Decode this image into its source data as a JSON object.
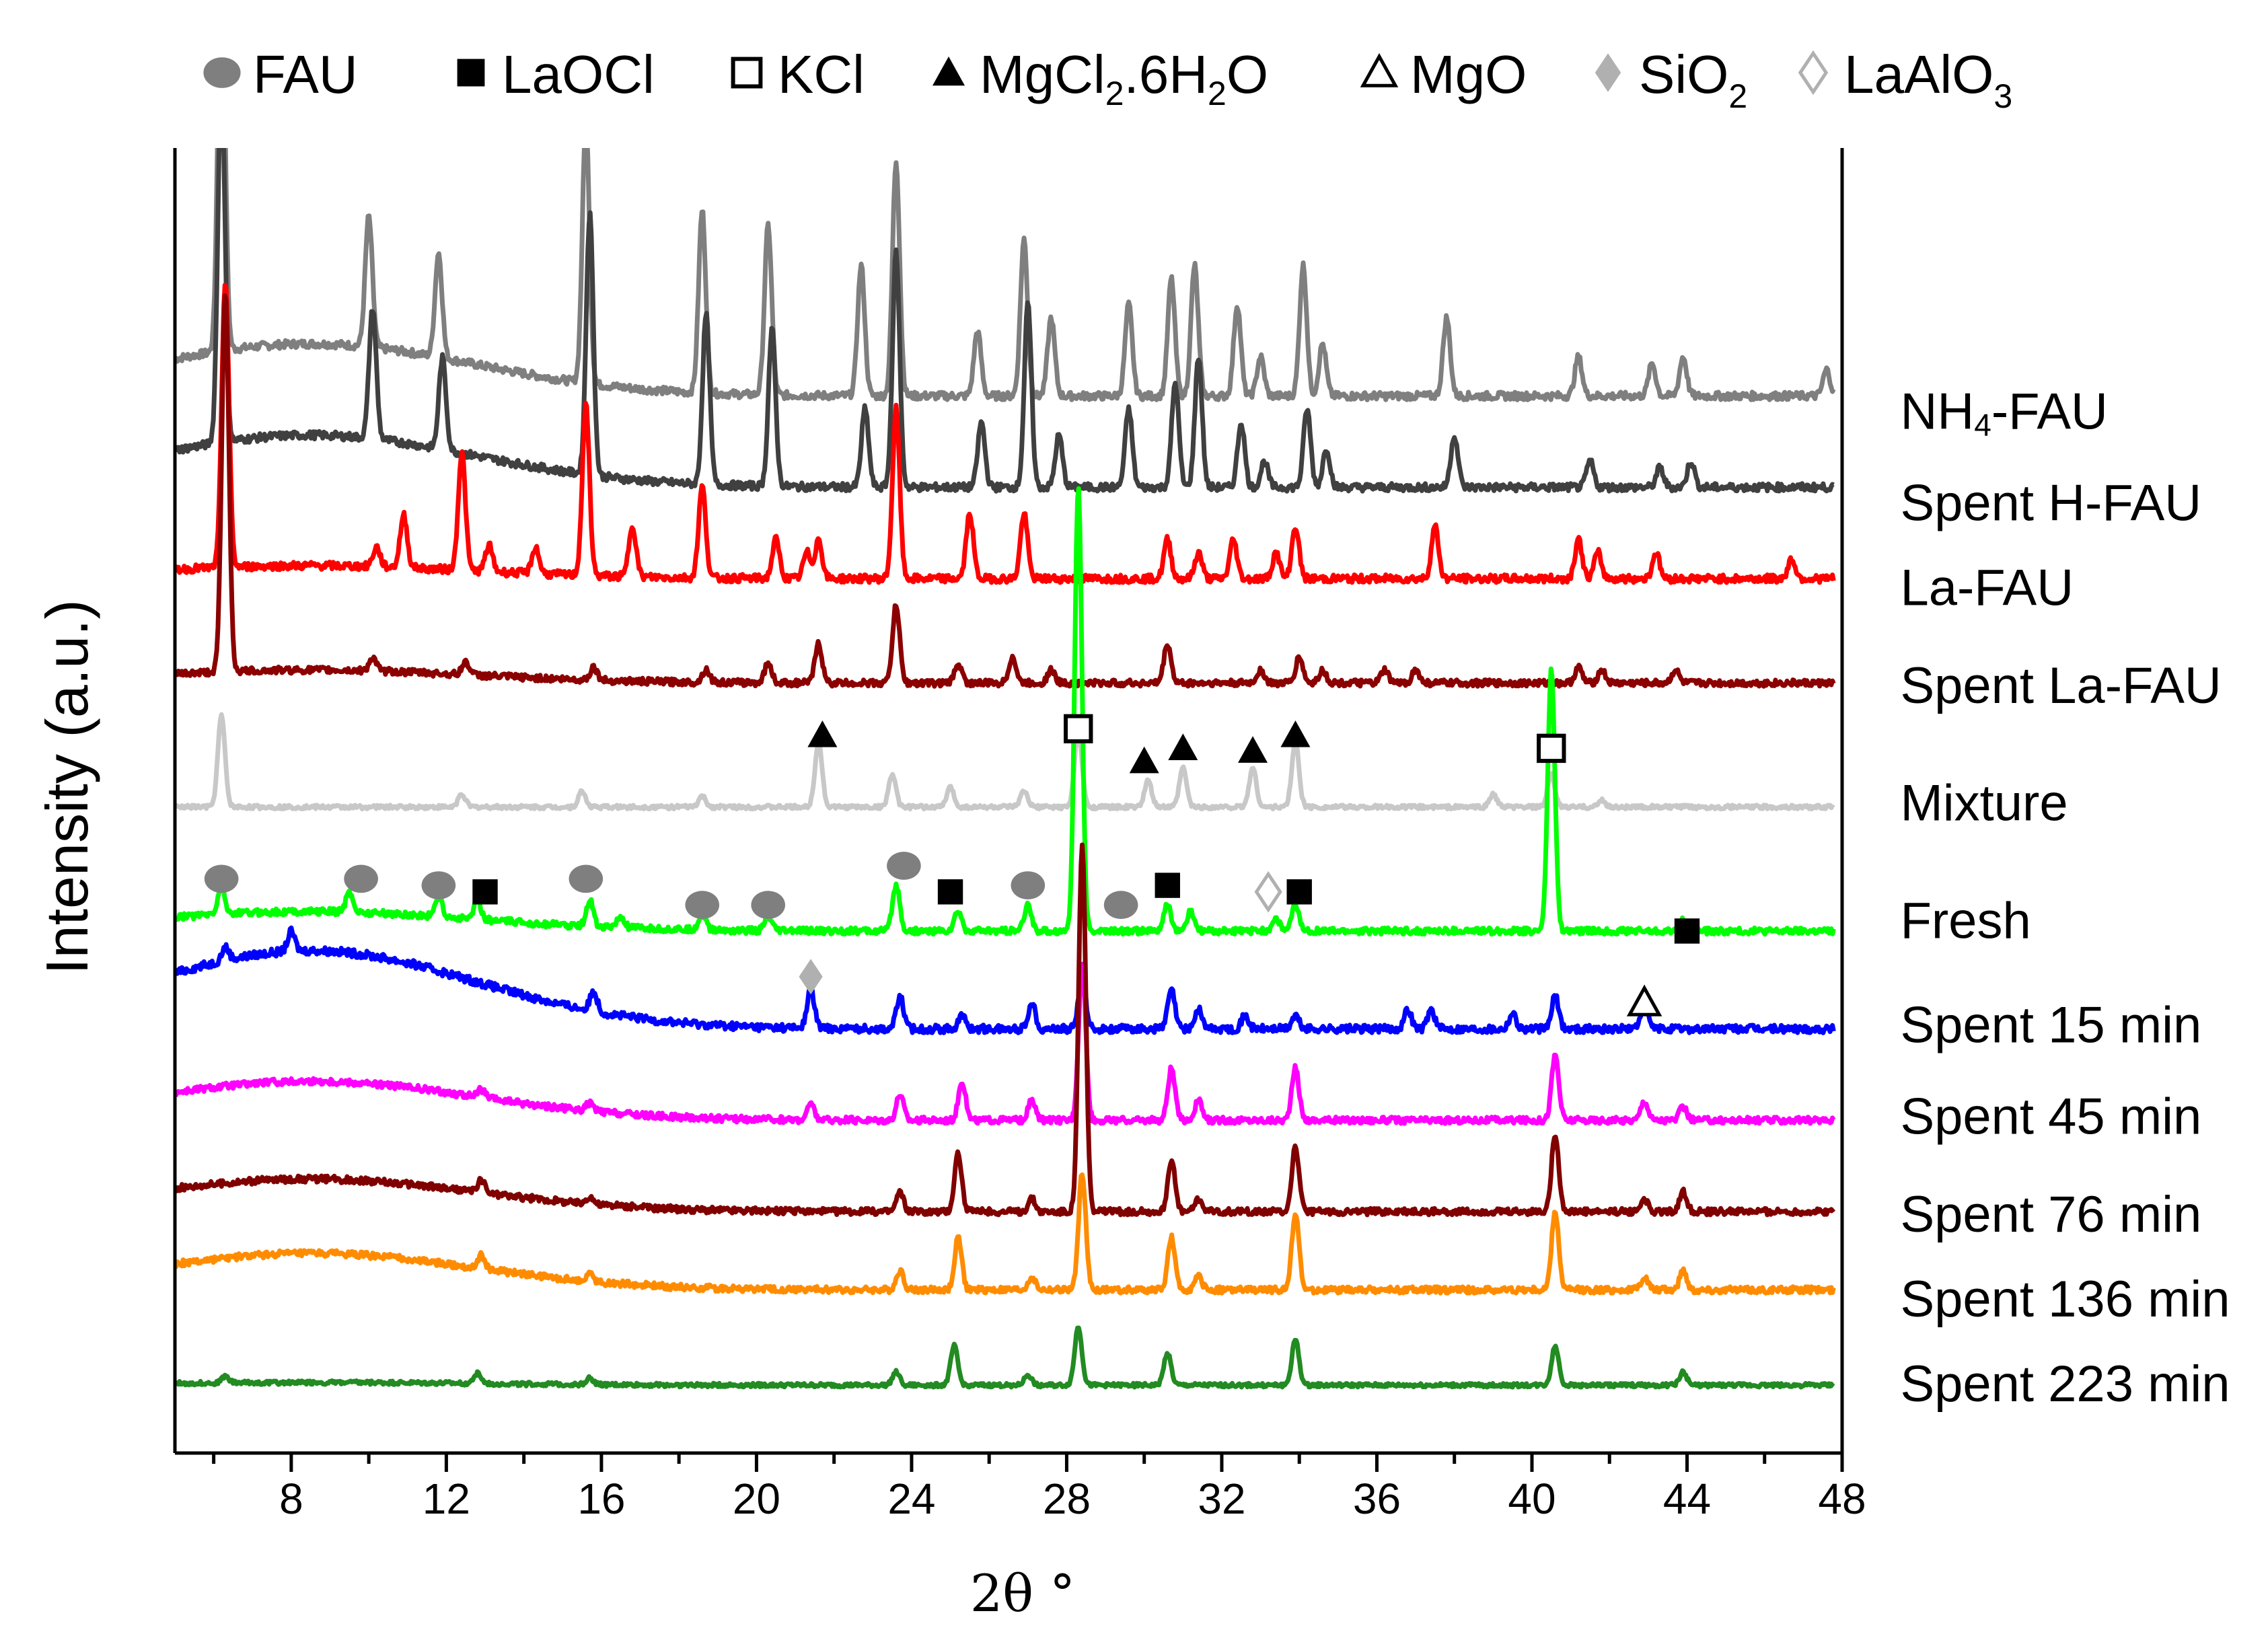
{
  "chart_data": {
    "type": "line",
    "title": "",
    "xlabel": "2θ °",
    "ylabel": "Intensity (a.u.)",
    "xlim": [
      5,
      48
    ],
    "xticks": [
      8,
      12,
      16,
      20,
      24,
      28,
      32,
      36,
      40,
      44,
      48
    ],
    "ylim": [
      0,
      100
    ],
    "grid": false,
    "legend": [
      {
        "name": "FAU",
        "marker": "circle-gray"
      },
      {
        "name": "LaOCl",
        "marker": "square-filled"
      },
      {
        "name": "KCl",
        "marker": "square-open"
      },
      {
        "name": "MgCl2.6H2O",
        "marker": "triangle-filled"
      },
      {
        "name": "MgO",
        "marker": "triangle-open"
      },
      {
        "name": "SiO2",
        "marker": "diamond-gray"
      },
      {
        "name": "LaAlO3",
        "marker": "diamond-open"
      }
    ],
    "series": [
      {
        "name": "NH4-FAU",
        "color": "#7f7f7f",
        "baseline": 81,
        "bump": 4,
        "noise": 0.6,
        "peaks": [
          [
            6.2,
            30
          ],
          [
            10.0,
            10
          ],
          [
            11.8,
            8
          ],
          [
            15.6,
            20
          ],
          [
            18.6,
            14
          ],
          [
            20.3,
            13
          ],
          [
            22.7,
            10
          ],
          [
            23.6,
            18
          ],
          [
            25.7,
            5
          ],
          [
            26.9,
            12
          ],
          [
            27.6,
            6
          ],
          [
            29.6,
            7
          ],
          [
            30.7,
            9
          ],
          [
            31.3,
            10
          ],
          [
            32.4,
            7
          ],
          [
            33.0,
            3
          ],
          [
            34.1,
            10
          ],
          [
            34.6,
            4
          ],
          [
            37.8,
            6
          ],
          [
            41.2,
            3
          ],
          [
            43.1,
            2.5
          ],
          [
            43.9,
            3
          ],
          [
            47.6,
            2
          ]
        ]
      },
      {
        "name": "Spent H-FAU",
        "color": "#404040",
        "baseline": 74,
        "bump": 4,
        "noise": 0.6,
        "peaks": [
          [
            6.2,
            28
          ],
          [
            10.1,
            10
          ],
          [
            11.9,
            7
          ],
          [
            15.7,
            20
          ],
          [
            18.7,
            13
          ],
          [
            20.4,
            12
          ],
          [
            22.8,
            6
          ],
          [
            23.6,
            18
          ],
          [
            25.8,
            5
          ],
          [
            27.0,
            14
          ],
          [
            27.8,
            4
          ],
          [
            29.6,
            6
          ],
          [
            30.8,
            8
          ],
          [
            31.4,
            10
          ],
          [
            32.5,
            5
          ],
          [
            33.1,
            2
          ],
          [
            34.2,
            6
          ],
          [
            34.7,
            3
          ],
          [
            38.0,
            4
          ],
          [
            41.5,
            2
          ],
          [
            43.3,
            1.5
          ],
          [
            44.1,
            2
          ]
        ]
      },
      {
        "name": "La-FAU",
        "color": "#ff0000",
        "baseline": 67,
        "bump": 1,
        "noise": 0.6,
        "peaks": [
          [
            6.3,
            22
          ],
          [
            10.2,
            1.5
          ],
          [
            10.9,
            4
          ],
          [
            12.4,
            9
          ],
          [
            13.1,
            2
          ],
          [
            14.3,
            2
          ],
          [
            15.6,
            13
          ],
          [
            16.8,
            4
          ],
          [
            18.6,
            7
          ],
          [
            20.5,
            3
          ],
          [
            21.3,
            2
          ],
          [
            21.6,
            3
          ],
          [
            23.6,
            13
          ],
          [
            25.5,
            5
          ],
          [
            26.9,
            5
          ],
          [
            30.6,
            3
          ],
          [
            31.4,
            2
          ],
          [
            32.3,
            3
          ],
          [
            33.4,
            2
          ],
          [
            33.9,
            4
          ],
          [
            37.5,
            4
          ],
          [
            41.2,
            3
          ],
          [
            41.7,
            2
          ],
          [
            43.2,
            2
          ],
          [
            46.7,
            1.5
          ]
        ]
      },
      {
        "name": "Spent La-FAU",
        "color": "#8b0000",
        "baseline": 59,
        "bump": 1,
        "noise": 0.5,
        "peaks": [
          [
            6.3,
            29
          ],
          [
            10.1,
            1
          ],
          [
            12.5,
            1
          ],
          [
            15.8,
            1
          ],
          [
            18.7,
            1
          ],
          [
            20.3,
            1.5
          ],
          [
            21.6,
            3
          ],
          [
            23.6,
            6
          ],
          [
            25.2,
            1.5
          ],
          [
            26.6,
            2
          ],
          [
            27.6,
            1
          ],
          [
            30.6,
            3
          ],
          [
            33.0,
            1
          ],
          [
            34.0,
            2
          ],
          [
            34.6,
            1
          ],
          [
            36.2,
            1
          ],
          [
            37.0,
            1
          ],
          [
            41.2,
            1.2
          ],
          [
            41.8,
            1
          ],
          [
            43.7,
            1
          ]
        ]
      },
      {
        "name": "Mixture",
        "color": "#c8c8c8",
        "baseline": 49.5,
        "bump": 0,
        "noise": 0.3,
        "peaks": [
          [
            6.2,
            7
          ],
          [
            12.4,
            1
          ],
          [
            15.5,
            1.2
          ],
          [
            18.6,
            0.8
          ],
          [
            21.6,
            5
          ],
          [
            23.5,
            2.5
          ],
          [
            25.0,
            1.5
          ],
          [
            26.9,
            1.2
          ],
          [
            28.3,
            6
          ],
          [
            30.1,
            2
          ],
          [
            31.0,
            3
          ],
          [
            32.8,
            3
          ],
          [
            33.9,
            5
          ],
          [
            39.0,
            1
          ],
          [
            40.5,
            2.5
          ],
          [
            41.8,
            0.5
          ]
        ]
      },
      {
        "name": "Fresh",
        "color": "#00ff00",
        "baseline": 40,
        "bump": 1.5,
        "noise": 0.5,
        "peaks": [
          [
            6.2,
            2
          ],
          [
            9.5,
            1.5
          ],
          [
            11.8,
            1.5
          ],
          [
            12.8,
            1.5
          ],
          [
            15.7,
            2
          ],
          [
            16.5,
            0.8
          ],
          [
            18.6,
            1.2
          ],
          [
            20.3,
            1
          ],
          [
            23.6,
            3.5
          ],
          [
            25.2,
            1.5
          ],
          [
            27.0,
            2
          ],
          [
            28.3,
            34
          ],
          [
            30.6,
            2
          ],
          [
            31.2,
            1.5
          ],
          [
            33.4,
            1
          ],
          [
            33.9,
            2
          ],
          [
            40.5,
            20
          ],
          [
            43.9,
            0.8
          ]
        ]
      },
      {
        "name": "Spent 15 min",
        "color": "#0000ff",
        "baseline": 32.5,
        "bump": 6,
        "noise": 0.6,
        "peaks": [
          [
            6.3,
            1
          ],
          [
            8.0,
            1.5
          ],
          [
            15.8,
            1.5
          ],
          [
            21.4,
            3
          ],
          [
            23.7,
            2.5
          ],
          [
            25.3,
            1
          ],
          [
            27.1,
            2
          ],
          [
            28.4,
            4
          ],
          [
            30.7,
            3
          ],
          [
            31.4,
            1.5
          ],
          [
            32.6,
            1
          ],
          [
            33.9,
            1
          ],
          [
            36.8,
            1.5
          ],
          [
            37.4,
            1.5
          ],
          [
            39.5,
            1.2
          ],
          [
            40.6,
            2.5
          ],
          [
            42.9,
            2
          ]
        ]
      },
      {
        "name": "Spent 45 min",
        "color": "#ff00ff",
        "baseline": 25.5,
        "bump": 3,
        "noise": 0.5,
        "peaks": [
          [
            12.9,
            0.6
          ],
          [
            15.7,
            0.6
          ],
          [
            21.4,
            1.2
          ],
          [
            23.7,
            2
          ],
          [
            25.3,
            3
          ],
          [
            27.1,
            1.5
          ],
          [
            28.4,
            12
          ],
          [
            30.7,
            4
          ],
          [
            31.4,
            1.5
          ],
          [
            33.9,
            4
          ],
          [
            40.6,
            5
          ],
          [
            42.9,
            1.5
          ],
          [
            43.9,
            1
          ]
        ]
      },
      {
        "name": "Spent 76 min",
        "color": "#800000",
        "baseline": 18.5,
        "bump": 2.5,
        "noise": 0.5,
        "peaks": [
          [
            12.9,
            1
          ],
          [
            15.7,
            0.6
          ],
          [
            23.7,
            1.5
          ],
          [
            25.2,
            4.5
          ],
          [
            27.1,
            1
          ],
          [
            28.4,
            28
          ],
          [
            30.7,
            4
          ],
          [
            31.4,
            1
          ],
          [
            33.9,
            5
          ],
          [
            40.6,
            6
          ],
          [
            42.9,
            1
          ],
          [
            43.9,
            1.5
          ]
        ]
      },
      {
        "name": "Spent 136 min",
        "color": "#ff8c00",
        "baseline": 12.5,
        "bump": 2.8,
        "noise": 0.5,
        "peaks": [
          [
            12.9,
            1
          ],
          [
            15.7,
            0.6
          ],
          [
            23.7,
            1.5
          ],
          [
            25.2,
            4
          ],
          [
            27.1,
            1
          ],
          [
            28.4,
            9
          ],
          [
            30.7,
            4
          ],
          [
            31.4,
            1
          ],
          [
            33.9,
            6
          ],
          [
            40.6,
            6
          ],
          [
            42.9,
            1
          ],
          [
            43.9,
            1.5
          ]
        ]
      },
      {
        "name": "Spent 223 min",
        "color": "#228b22",
        "baseline": 5.2,
        "bump": 0.2,
        "noise": 0.3,
        "peaks": [
          [
            6.3,
            0.5
          ],
          [
            12.8,
            0.8
          ],
          [
            15.7,
            0.5
          ],
          [
            23.6,
            1
          ],
          [
            25.1,
            3
          ],
          [
            27.0,
            0.8
          ],
          [
            28.3,
            4.5
          ],
          [
            30.6,
            2.5
          ],
          [
            33.9,
            3.5
          ],
          [
            40.6,
            3
          ],
          [
            43.9,
            1
          ]
        ]
      }
    ],
    "curve_labels": [
      {
        "text": "NH4-FAU",
        "main": "NH",
        "sub": "4",
        "tail": "-FAU",
        "x": 49.5,
        "y": 79.5
      },
      {
        "text": "Spent H-FAU",
        "main": "Spent H-FAU",
        "sub": "",
        "tail": "",
        "x": 49.5,
        "y": 72.5
      },
      {
        "text": "La-FAU",
        "main": "La-FAU",
        "sub": "",
        "tail": "",
        "x": 49.5,
        "y": 66
      },
      {
        "text": "Spent La-FAU",
        "main": "Spent La-FAU",
        "sub": "",
        "tail": "",
        "x": 49.5,
        "y": 58.5
      },
      {
        "text": "Mixture",
        "main": "Mixture",
        "sub": "",
        "tail": "",
        "x": 49.5,
        "y": 49.5
      },
      {
        "text": "Fresh",
        "main": "Fresh",
        "sub": "",
        "tail": "",
        "x": 49.5,
        "y": 40.5
      },
      {
        "text": "Spent 15 min",
        "main": "Spent 15 min",
        "sub": "",
        "tail": "",
        "x": 49.5,
        "y": 32.5
      },
      {
        "text": "Spent 45 min",
        "main": "Spent 45 min",
        "sub": "",
        "tail": "",
        "x": 49.5,
        "y": 25.5
      },
      {
        "text": "Spent 76 min",
        "main": "Spent 76 min",
        "sub": "",
        "tail": "",
        "x": 49.5,
        "y": 18
      },
      {
        "text": "Spent 136 min",
        "main": "Spent 136 min",
        "sub": "",
        "tail": "",
        "x": 49.5,
        "y": 11.5
      },
      {
        "text": "Spent 223 min",
        "main": "Spent 223 min",
        "sub": "",
        "tail": "",
        "x": 49.5,
        "y": 5
      }
    ],
    "annotations": [
      {
        "phase": "MgCl2.6H2O",
        "x": 21.7,
        "y": 55
      },
      {
        "phase": "KCl",
        "x": 28.3,
        "y": 55.5
      },
      {
        "phase": "MgCl2.6H2O",
        "x": 30.0,
        "y": 53
      },
      {
        "phase": "MgCl2.6H2O",
        "x": 31.0,
        "y": 54
      },
      {
        "phase": "MgCl2.6H2O",
        "x": 32.8,
        "y": 53.8
      },
      {
        "phase": "MgCl2.6H2O",
        "x": 33.9,
        "y": 55
      },
      {
        "phase": "KCl",
        "x": 40.5,
        "y": 54
      },
      {
        "phase": "FAU",
        "x": 6.2,
        "y": 44
      },
      {
        "phase": "FAU",
        "x": 9.8,
        "y": 44
      },
      {
        "phase": "FAU",
        "x": 11.8,
        "y": 43.5
      },
      {
        "phase": "LaOCl",
        "x": 13.0,
        "y": 43
      },
      {
        "phase": "FAU",
        "x": 15.6,
        "y": 44
      },
      {
        "phase": "FAU",
        "x": 18.6,
        "y": 42
      },
      {
        "phase": "FAU",
        "x": 20.3,
        "y": 42
      },
      {
        "phase": "FAU",
        "x": 23.8,
        "y": 45
      },
      {
        "phase": "LaOCl",
        "x": 25.0,
        "y": 43
      },
      {
        "phase": "FAU",
        "x": 27.0,
        "y": 43.5
      },
      {
        "phase": "FAU",
        "x": 29.4,
        "y": 42
      },
      {
        "phase": "LaOCl",
        "x": 30.6,
        "y": 43.5
      },
      {
        "phase": "LaAlO3",
        "x": 33.2,
        "y": 43
      },
      {
        "phase": "LaOCl",
        "x": 34.0,
        "y": 43
      },
      {
        "phase": "LaOCl",
        "x": 44.0,
        "y": 40
      },
      {
        "phase": "SiO2",
        "x": 21.4,
        "y": 36.5
      },
      {
        "phase": "MgO",
        "x": 42.9,
        "y": 34.5
      }
    ]
  }
}
